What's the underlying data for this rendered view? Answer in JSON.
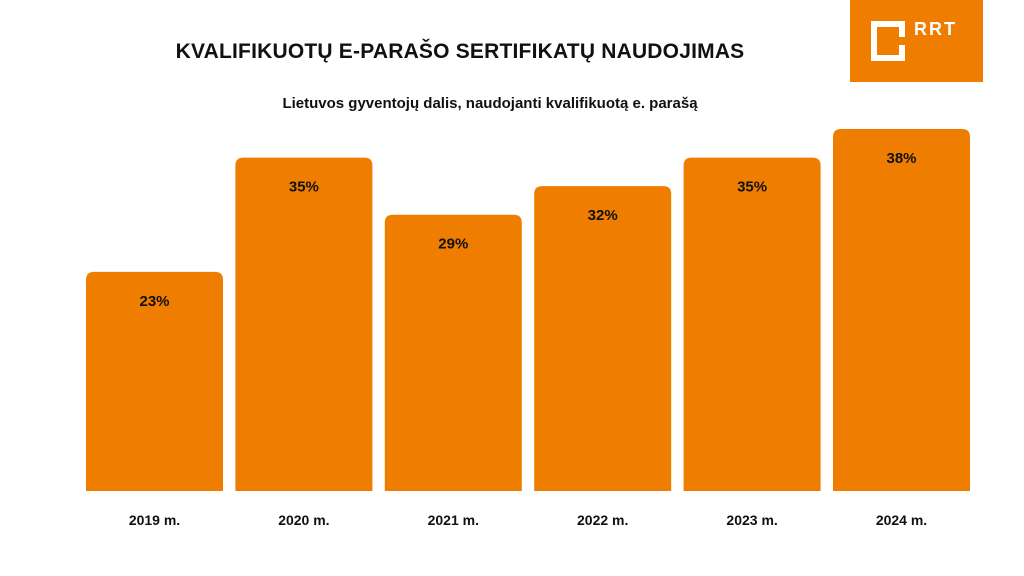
{
  "logo": {
    "text": "RRT"
  },
  "colors": {
    "bar": "#ef7d00",
    "text": "#111111"
  },
  "chart_data": {
    "type": "bar",
    "title": "KVALIFIKUOTŲ E-PARAŠO SERTIFIKATŲ NAUDOJIMAS",
    "subtitle": "Lietuvos gyventojų dalis, naudojanti kvalifikuotą e. parašą",
    "categories": [
      "2019 m.",
      "2020 m.",
      "2021 m.",
      "2022 m.",
      "2023 m.",
      "2024 m."
    ],
    "values": [
      23,
      35,
      29,
      32,
      35,
      38
    ],
    "value_labels": [
      "23%",
      "35%",
      "29%",
      "32%",
      "35%",
      "38%"
    ],
    "unit": "%",
    "xlabel": "",
    "ylabel": "",
    "ylim": [
      0,
      38
    ],
    "grid": false,
    "legend": "none"
  }
}
